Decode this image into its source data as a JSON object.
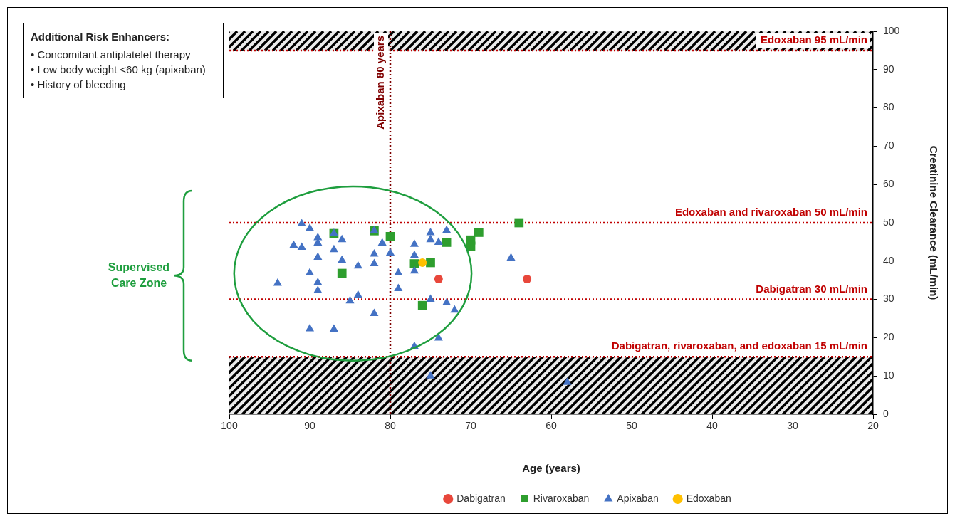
{
  "chart_data": {
    "type": "scatter",
    "xlabel": "Age (years)",
    "ylabel": "Creatinine Clearance (mL/min)",
    "xlim": [
      100,
      20
    ],
    "xticks": [
      100,
      90,
      80,
      70,
      60,
      50,
      40,
      30,
      20
    ],
    "ylim": [
      0,
      100
    ],
    "yticks": [
      0,
      10,
      20,
      30,
      40,
      50,
      60,
      70,
      80,
      90,
      100
    ],
    "grid": false,
    "legend": "bottom",
    "series": [
      {
        "name": "Dabigatran",
        "color": "#e8473b",
        "marker": "circle",
        "x": [
          74,
          63
        ],
        "values": [
          35.3,
          35.3
        ]
      },
      {
        "name": "Rivaroxaban",
        "color": "#2e9e2e",
        "marker": "square",
        "x": [
          87,
          86,
          82,
          80,
          77,
          75,
          76,
          73,
          70,
          70,
          69,
          64
        ],
        "values": [
          47.2,
          36.8,
          47.9,
          46.4,
          39.3,
          39.6,
          28.4,
          44.9,
          45.5,
          43.9,
          47.5,
          50
        ]
      },
      {
        "name": "Apixaban",
        "color": "#4472c4",
        "marker": "triangle",
        "x": [
          91,
          90,
          89,
          89,
          92,
          91,
          87,
          86,
          87,
          89,
          86,
          84,
          90,
          94,
          89,
          89,
          85,
          84,
          82,
          90,
          87,
          82,
          81,
          82,
          82,
          80,
          77,
          77,
          77,
          79,
          79,
          75,
          75,
          74,
          75,
          77,
          75,
          74,
          73,
          72,
          73,
          65,
          58
        ],
        "values": [
          49.7,
          48.5,
          46.1,
          44.7,
          44.1,
          43.6,
          47.2,
          45.6,
          43,
          41,
          40.2,
          38.7,
          36.9,
          34.2,
          34.4,
          32.3,
          29.6,
          31.1,
          26.3,
          22.3,
          22.2,
          47.9,
          44.7,
          41.8,
          39.3,
          42.1,
          44.4,
          41.5,
          37.4,
          36.9,
          32.8,
          47.4,
          45.6,
          44.9,
          30,
          17.7,
          10,
          19.9,
          48,
          27.2,
          29.1,
          40.8,
          8.3
        ]
      },
      {
        "name": "Edoxaban",
        "color": "#ffc000",
        "marker": "circle",
        "x": [
          76
        ],
        "values": [
          39.6
        ]
      }
    ],
    "ref_lines": [
      {
        "axis": "y",
        "value": 95,
        "label": "Edoxaban 95 mL/min",
        "color": "#c00000",
        "line_style": "dotted"
      },
      {
        "axis": "y",
        "value": 50,
        "label": "Edoxaban and rivaroxaban 50 mL/min",
        "color": "#c00000",
        "line_style": "dotted"
      },
      {
        "axis": "y",
        "value": 30,
        "label": "Dabigatran 30 mL/min",
        "color": "#c00000",
        "line_style": "dotted"
      },
      {
        "axis": "y",
        "value": 15,
        "label": "Dabigatran, rivaroxaban, and edoxaban 15 mL/min",
        "color": "#c00000",
        "line_style": "dotted"
      },
      {
        "axis": "x",
        "value": 80,
        "label": "Apixaban 80 years",
        "color": "#7f0000",
        "line_style": "dotted"
      }
    ],
    "bands": [
      {
        "axis": "y",
        "from": 0,
        "to": 15
      },
      {
        "axis": "y",
        "from": 95,
        "to": 100
      }
    ],
    "annotations": [
      "Additional Risk Enhancers:",
      "• Concomitant antiplatelet therapy",
      "• Low body weight <60 kg (apixaban)",
      "• History of bleeding",
      "Supervised Care Zone"
    ]
  }
}
